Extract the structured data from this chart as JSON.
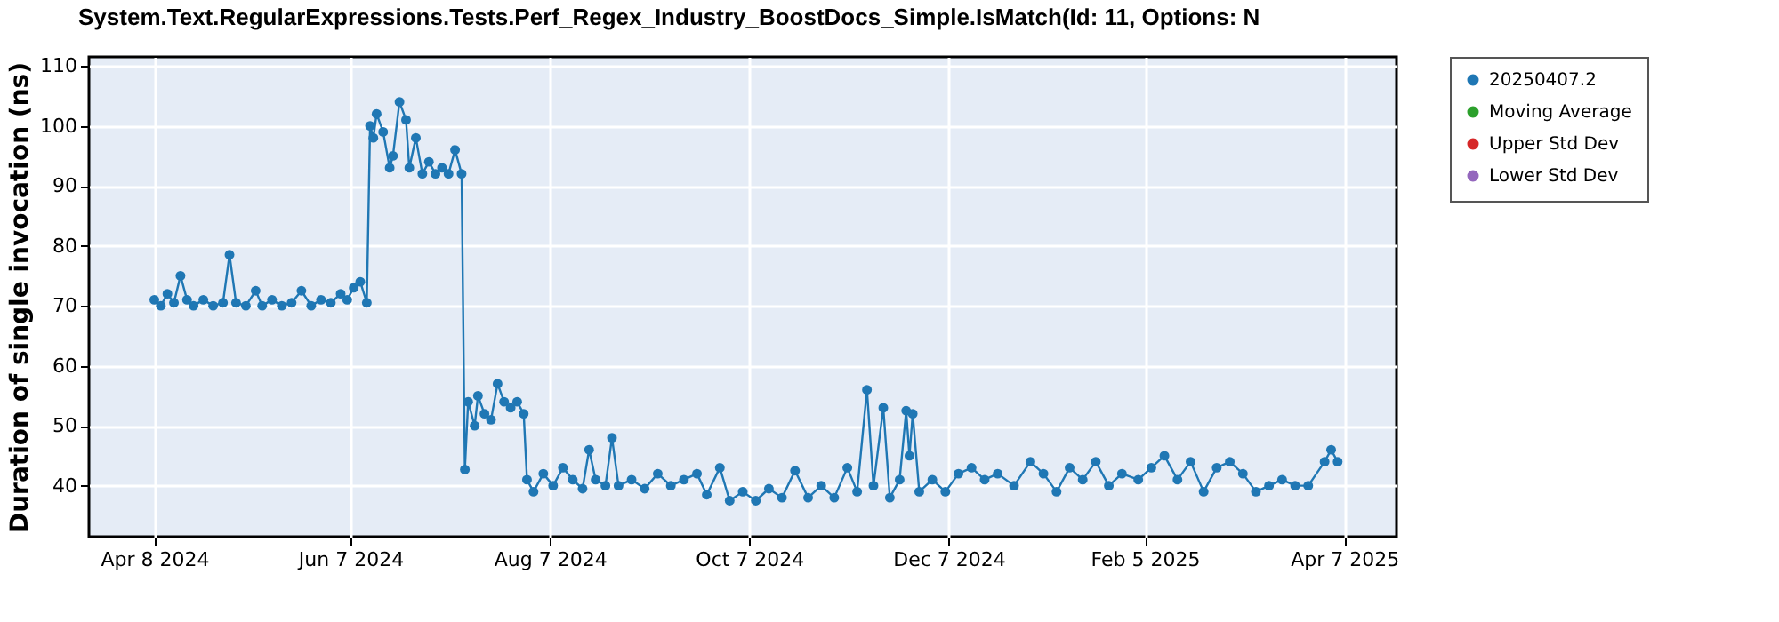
{
  "chart_data": {
    "type": "line",
    "title": "System.Text.RegularExpressions.Tests.Perf_Regex_Industry_BoostDocs_Simple.IsMatch(Id: 11, Options: N",
    "ylabel": "Duration of single invocation (ns)",
    "xlim": [
      "2024-03-19",
      "2025-04-23"
    ],
    "xticks": [
      {
        "value": "2024-04-08",
        "label": "Apr 8 2024"
      },
      {
        "value": "2024-06-07",
        "label": "Jun 7 2024"
      },
      {
        "value": "2024-08-07",
        "label": "Aug 7 2024"
      },
      {
        "value": "2024-10-07",
        "label": "Oct 7 2024"
      },
      {
        "value": "2024-12-07",
        "label": "Dec 7 2024"
      },
      {
        "value": "2025-02-05",
        "label": "Feb 5 2025"
      },
      {
        "value": "2025-04-07",
        "label": "Apr 7 2025"
      }
    ],
    "ylim": [
      31.5,
      111.5
    ],
    "yticks": [
      40,
      50,
      60,
      70,
      80,
      90,
      100,
      110
    ],
    "grid": true,
    "legend": "right",
    "marker": "circle",
    "line_style": "solid",
    "series": [
      {
        "name": "20250407.2",
        "color": "#1f77b4",
        "x": [
          "2024-04-08",
          "2024-04-10",
          "2024-04-12",
          "2024-04-14",
          "2024-04-16",
          "2024-04-18",
          "2024-04-20",
          "2024-04-23",
          "2024-04-26",
          "2024-04-29",
          "2024-05-01",
          "2024-05-03",
          "2024-05-06",
          "2024-05-09",
          "2024-05-11",
          "2024-05-14",
          "2024-05-17",
          "2024-05-20",
          "2024-05-23",
          "2024-05-26",
          "2024-05-29",
          "2024-06-01",
          "2024-06-04",
          "2024-06-06",
          "2024-06-08",
          "2024-06-10",
          "2024-06-12",
          "2024-06-13",
          "2024-06-14",
          "2024-06-15",
          "2024-06-17",
          "2024-06-19",
          "2024-06-20",
          "2024-06-22",
          "2024-06-24",
          "2024-06-25",
          "2024-06-27",
          "2024-06-29",
          "2024-07-01",
          "2024-07-03",
          "2024-07-05",
          "2024-07-07",
          "2024-07-09",
          "2024-07-11",
          "2024-07-12",
          "2024-07-13",
          "2024-07-15",
          "2024-07-16",
          "2024-07-18",
          "2024-07-20",
          "2024-07-22",
          "2024-07-24",
          "2024-07-26",
          "2024-07-28",
          "2024-07-30",
          "2024-07-31",
          "2024-08-02",
          "2024-08-05",
          "2024-08-08",
          "2024-08-11",
          "2024-08-14",
          "2024-08-17",
          "2024-08-19",
          "2024-08-21",
          "2024-08-24",
          "2024-08-26",
          "2024-08-28",
          "2024-09-01",
          "2024-09-05",
          "2024-09-09",
          "2024-09-13",
          "2024-09-17",
          "2024-09-21",
          "2024-09-24",
          "2024-09-28",
          "2024-10-01",
          "2024-10-05",
          "2024-10-09",
          "2024-10-13",
          "2024-10-17",
          "2024-10-21",
          "2024-10-25",
          "2024-10-29",
          "2024-11-02",
          "2024-11-06",
          "2024-11-09",
          "2024-11-12",
          "2024-11-14",
          "2024-11-17",
          "2024-11-19",
          "2024-11-22",
          "2024-11-24",
          "2024-11-25",
          "2024-11-26",
          "2024-11-28",
          "2024-12-02",
          "2024-12-06",
          "2024-12-10",
          "2024-12-14",
          "2024-12-18",
          "2024-12-22",
          "2024-12-27",
          "2025-01-01",
          "2025-01-05",
          "2025-01-09",
          "2025-01-13",
          "2025-01-17",
          "2025-01-21",
          "2025-01-25",
          "2025-01-29",
          "2025-02-03",
          "2025-02-07",
          "2025-02-11",
          "2025-02-15",
          "2025-02-19",
          "2025-02-23",
          "2025-02-27",
          "2025-03-03",
          "2025-03-07",
          "2025-03-11",
          "2025-03-15",
          "2025-03-19",
          "2025-03-23",
          "2025-03-27",
          "2025-04-01",
          "2025-04-03",
          "2025-04-05"
        ],
        "values": [
          71,
          70,
          72,
          70.5,
          75,
          71,
          70,
          71,
          70,
          70.5,
          78.5,
          70.5,
          70,
          72.5,
          70,
          71,
          70,
          70.5,
          72.5,
          70,
          71,
          70.5,
          72,
          71,
          73,
          74,
          70.5,
          100,
          98,
          102,
          99,
          93,
          95,
          104,
          101,
          93,
          98,
          92,
          94,
          92,
          93,
          92,
          96,
          92,
          42.7,
          54,
          50,
          55,
          52,
          51,
          57,
          54,
          53,
          54,
          52,
          41,
          39,
          42,
          40,
          43,
          41,
          39.5,
          46,
          41,
          40,
          48,
          40,
          41,
          39.5,
          42,
          40,
          41,
          42,
          38.5,
          43,
          37.5,
          39,
          37.5,
          39.5,
          38,
          42.5,
          38,
          40,
          38,
          43,
          39,
          56,
          40,
          53,
          38,
          41,
          52.5,
          45,
          52,
          39,
          41,
          39,
          42,
          43,
          41,
          42,
          40,
          44,
          42,
          39,
          43,
          41,
          44,
          40,
          42,
          41,
          43,
          45,
          41,
          44,
          39,
          43,
          44,
          42,
          39,
          40,
          41,
          40,
          40,
          44,
          46,
          44
        ]
      },
      {
        "name": "Moving Average",
        "color": "#2ca02c"
      },
      {
        "name": "Upper Std Dev",
        "color": "#d62728"
      },
      {
        "name": "Lower Std Dev",
        "color": "#9467bd"
      }
    ]
  }
}
